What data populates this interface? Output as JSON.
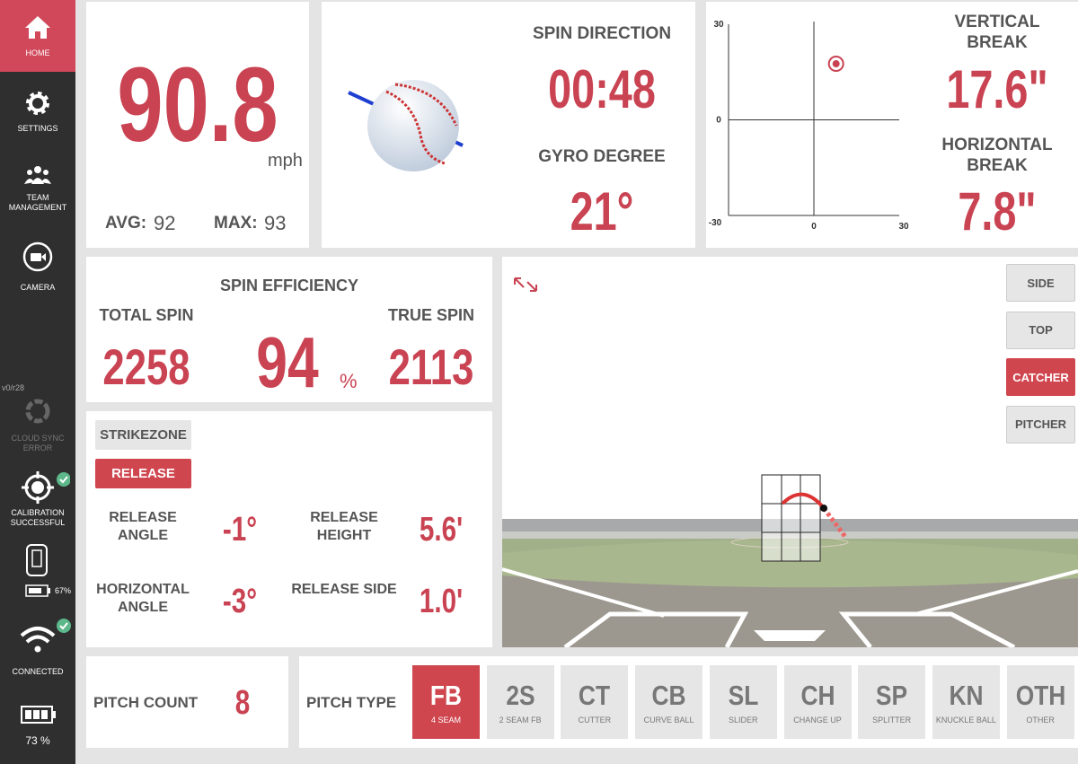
{
  "sidebar": {
    "items": [
      {
        "label": "HOME"
      },
      {
        "label": "SETTINGS"
      },
      {
        "label": "TEAM MANAGEMENT"
      },
      {
        "label": "CAMERA"
      }
    ],
    "version": "v0/r28",
    "cloud_sync": "CLOUD SYNC ERROR",
    "calibration": "CALIBRATION SUCCESSFUL",
    "device_battery": "67%",
    "connection": "CONNECTED",
    "battery": "73 %"
  },
  "speed": {
    "value": "90.8",
    "unit": "mph",
    "avg_label": "AVG:",
    "avg": 92,
    "max_label": "MAX:",
    "max": 93
  },
  "spin": {
    "direction_label": "SPIN DIRECTION",
    "direction": "00:48",
    "gyro_label": "GYRO DEGREE",
    "gyro": "21°"
  },
  "break": {
    "plot": {
      "xlim": [
        -30,
        30
      ],
      "ylim": [
        -30,
        30
      ],
      "xticks": [
        0,
        30
      ],
      "yticks": [
        -30,
        0,
        30
      ],
      "point": {
        "x": 7.8,
        "y": 17.6
      }
    },
    "vertical_label": "VERTICAL BREAK",
    "vertical": "17.6\"",
    "horizontal_label": "HORIZONTAL BREAK",
    "horizontal": "7.8\""
  },
  "spin_efficiency": {
    "title": "SPIN EFFICIENCY",
    "total_label": "TOTAL SPIN",
    "total": 2258,
    "efficiency": 94,
    "unit": "%",
    "true_label": "TRUE SPIN",
    "true": 2113
  },
  "release": {
    "tabs": [
      "STRIKEZONE",
      "RELEASE"
    ],
    "metrics": [
      {
        "label": "RELEASE ANGLE",
        "value": "-1°"
      },
      {
        "label": "RELEASE HEIGHT",
        "value": "5.6'"
      },
      {
        "label": "HORIZONTAL ANGLE",
        "value": "-3°"
      },
      {
        "label": "RELEASE SIDE",
        "value": "1.0'"
      }
    ]
  },
  "views": [
    "SIDE",
    "TOP",
    "CATCHER",
    "PITCHER"
  ],
  "pitch_count": {
    "label": "PITCH COUNT",
    "value": 8
  },
  "pitch_type": {
    "label": "PITCH TYPE",
    "options": [
      {
        "code": "FB",
        "name": "4 SEAM"
      },
      {
        "code": "2S",
        "name": "2 SEAM FB"
      },
      {
        "code": "CT",
        "name": "CUTTER"
      },
      {
        "code": "CB",
        "name": "CURVE BALL"
      },
      {
        "code": "SL",
        "name": "SLIDER"
      },
      {
        "code": "CH",
        "name": "CHANGE UP"
      },
      {
        "code": "SP",
        "name": "SPLITTER"
      },
      {
        "code": "KN",
        "name": "KNUCKLE BALL"
      },
      {
        "code": "OTH",
        "name": "OTHER"
      }
    ]
  }
}
